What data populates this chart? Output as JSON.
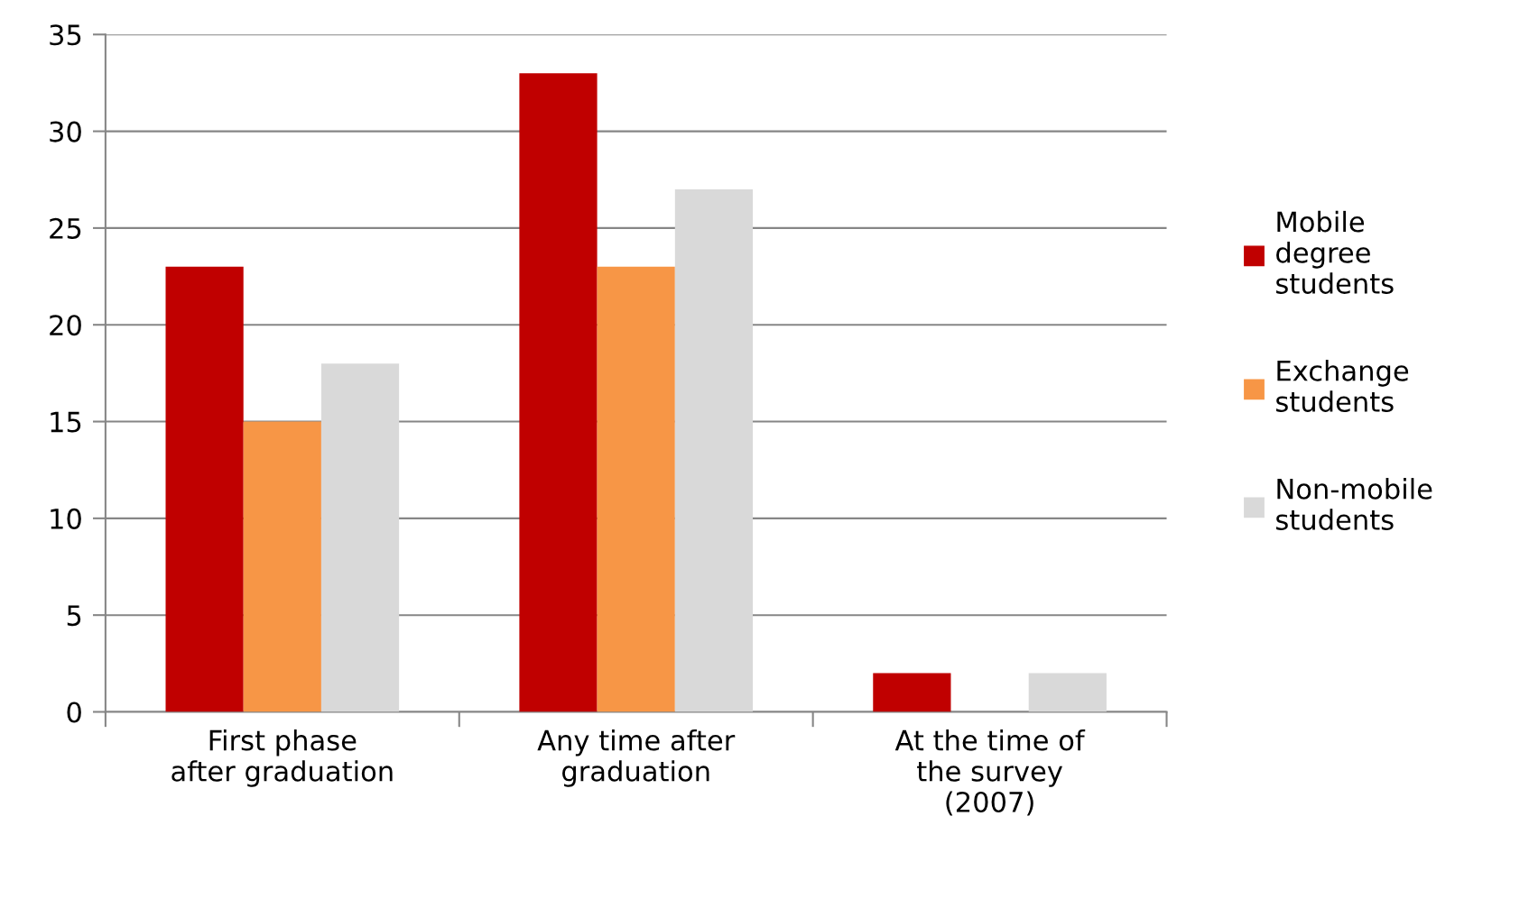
{
  "chart_data": {
    "type": "bar",
    "categories": [
      "First phase\nafter graduation",
      "Any time after\ngraduation",
      "At the time of\nthe survey\n(2007)"
    ],
    "series": [
      {
        "name": "Mobile degree students",
        "color": "#c00000",
        "values": [
          23,
          33,
          2
        ]
      },
      {
        "name": "Exchange students",
        "color": "#f79646",
        "values": [
          15,
          23,
          0
        ]
      },
      {
        "name": "Non-mobile students",
        "color": "#d9d9d9",
        "values": [
          18,
          27,
          2
        ]
      }
    ],
    "ylim": [
      0,
      35
    ],
    "yticks": [
      0,
      5,
      10,
      15,
      20,
      25,
      30,
      35
    ],
    "grid": "y",
    "legend": "right"
  }
}
